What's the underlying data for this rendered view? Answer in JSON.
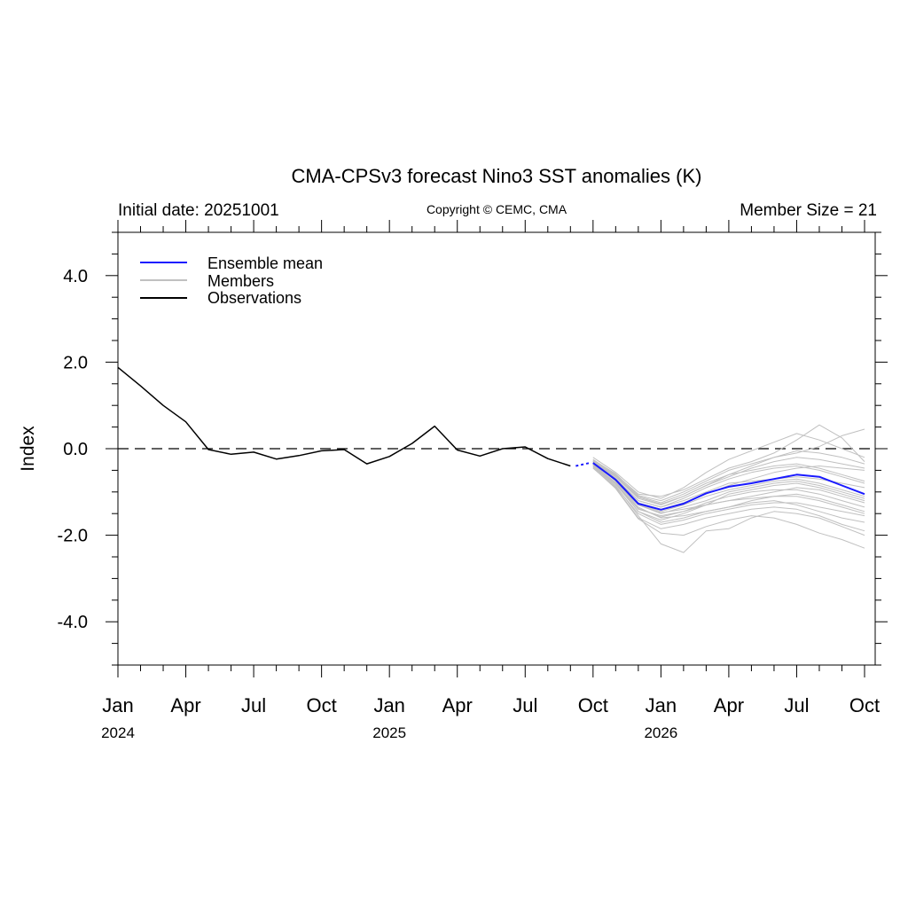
{
  "chart_data": {
    "type": "line",
    "title": "CMA-CPSv3 forecast Nino3 SST anomalies (K)",
    "subtitle_left": "Initial date: 20251001",
    "subtitle_center": "Copyright © CEMC, CMA",
    "subtitle_right": "Member Size = 21",
    "ylabel": "Index",
    "ylim": [
      -5,
      5
    ],
    "xlim": [
      "2024-01",
      "2026-10"
    ],
    "y_ticks": [
      "4.0",
      "2.0",
      "0.0",
      "-2.0",
      "-4.0"
    ],
    "x_tick_labels": [
      "Jan",
      "Apr",
      "Jul",
      "Oct",
      "Jan",
      "Apr",
      "Jul",
      "Oct",
      "Jan",
      "Apr",
      "Jul",
      "Oct"
    ],
    "year_labels": [
      "2024",
      "2025",
      "2026"
    ],
    "zero_line": "dashed",
    "legend_position": "top-left",
    "colors": {
      "ensemble_mean": "#1a1aff",
      "members": "#c0c0c0",
      "observations": "#000000"
    },
    "legend": [
      "Ensemble mean",
      "Members",
      "Observations"
    ],
    "series": [
      {
        "name": "Observations",
        "x": [
          "2024-01",
          "2024-02",
          "2024-03",
          "2024-04",
          "2024-05",
          "2024-06",
          "2024-07",
          "2024-08",
          "2024-09",
          "2024-10",
          "2024-11",
          "2024-12",
          "2025-01",
          "2025-02",
          "2025-03",
          "2025-04",
          "2025-05",
          "2025-06",
          "2025-07",
          "2025-08",
          "2025-09"
        ],
        "values": [
          1.88,
          1.45,
          1.0,
          0.62,
          -0.02,
          -0.13,
          -0.08,
          -0.24,
          -0.16,
          -0.05,
          -0.02,
          -0.35,
          -0.18,
          0.12,
          0.52,
          -0.03,
          -0.17,
          0.0,
          0.04,
          -0.23,
          -0.4
        ]
      },
      {
        "name": "Ensemble mean",
        "x": [
          "2025-10",
          "2025-11",
          "2025-12",
          "2026-01",
          "2026-02",
          "2026-03",
          "2026-04",
          "2026-05",
          "2026-06",
          "2026-07",
          "2026-08",
          "2026-09",
          "2026-10"
        ],
        "values": [
          -0.33,
          -0.72,
          -1.27,
          -1.41,
          -1.27,
          -1.03,
          -0.88,
          -0.8,
          -0.7,
          -0.6,
          -0.65,
          -0.85,
          -1.05
        ]
      }
    ],
    "members": {
      "x": [
        "2025-10",
        "2025-11",
        "2025-12",
        "2026-01",
        "2026-02",
        "2026-03",
        "2026-04",
        "2026-05",
        "2026-06",
        "2026-07",
        "2026-08",
        "2026-09",
        "2026-10"
      ],
      "values": [
        [
          -0.3,
          -0.65,
          -1.15,
          -1.3,
          -1.1,
          -0.85,
          -0.6,
          -0.4,
          -0.2,
          -0.1,
          0.05,
          0.3,
          0.45
        ],
        [
          -0.35,
          -0.8,
          -1.4,
          -1.55,
          -1.45,
          -1.3,
          -1.2,
          -1.1,
          -1.0,
          -0.9,
          -0.95,
          -1.1,
          -1.25
        ],
        [
          -0.25,
          -0.6,
          -1.05,
          -1.1,
          -0.95,
          -0.7,
          -0.45,
          -0.3,
          -0.1,
          0.2,
          0.55,
          0.25,
          -0.3
        ],
        [
          -0.4,
          -0.85,
          -1.55,
          -2.2,
          -2.4,
          -1.9,
          -1.85,
          -1.6,
          -1.45,
          -1.5,
          -1.6,
          -1.8,
          -2.0
        ],
        [
          -0.2,
          -0.55,
          -1.0,
          -1.15,
          -0.9,
          -0.55,
          -0.25,
          -0.05,
          0.15,
          0.35,
          0.2,
          0.0,
          -0.2
        ],
        [
          -0.35,
          -0.7,
          -1.2,
          -1.35,
          -1.2,
          -1.0,
          -0.8,
          -0.75,
          -0.7,
          -0.65,
          -0.7,
          -0.8,
          -0.9
        ],
        [
          -0.3,
          -0.75,
          -1.35,
          -1.6,
          -1.55,
          -1.45,
          -1.35,
          -1.25,
          -1.2,
          -1.3,
          -1.45,
          -1.6,
          -1.7
        ],
        [
          -0.45,
          -0.9,
          -1.6,
          -1.85,
          -1.75,
          -1.6,
          -1.5,
          -1.4,
          -1.35,
          -1.4,
          -1.55,
          -1.75,
          -1.9
        ],
        [
          -0.28,
          -0.62,
          -1.1,
          -1.25,
          -1.05,
          -0.8,
          -0.6,
          -0.5,
          -0.4,
          -0.35,
          -0.45,
          -0.6,
          -0.75
        ],
        [
          -0.38,
          -0.8,
          -1.45,
          -1.65,
          -1.5,
          -1.3,
          -1.05,
          -0.95,
          -0.85,
          -0.8,
          -0.9,
          -1.05,
          -1.2
        ],
        [
          -0.32,
          -0.7,
          -1.25,
          -1.4,
          -1.25,
          -1.05,
          -0.85,
          -0.7,
          -0.55,
          -0.45,
          -0.4,
          -0.45,
          -0.5
        ],
        [
          -0.42,
          -0.88,
          -1.5,
          -1.75,
          -1.65,
          -1.5,
          -1.4,
          -1.3,
          -1.25,
          -1.25,
          -1.35,
          -1.45,
          -1.55
        ],
        [
          -0.3,
          -0.68,
          -1.2,
          -1.35,
          -1.15,
          -0.9,
          -0.7,
          -0.55,
          -0.45,
          -0.4,
          -0.5,
          -0.65,
          -0.8
        ],
        [
          -0.36,
          -0.78,
          -1.3,
          -1.5,
          -1.35,
          -1.2,
          -1.0,
          -0.9,
          -0.8,
          -0.75,
          -0.85,
          -1.0,
          -1.15
        ],
        [
          -0.26,
          -0.58,
          -1.08,
          -1.2,
          -1.0,
          -0.75,
          -0.5,
          -0.35,
          -0.2,
          -0.05,
          -0.1,
          -0.2,
          -0.35
        ],
        [
          -0.4,
          -0.82,
          -1.45,
          -1.7,
          -1.6,
          -1.45,
          -1.35,
          -1.2,
          -1.1,
          -1.05,
          -1.15,
          -1.3,
          -1.45
        ],
        [
          -0.34,
          -0.74,
          -1.28,
          -1.45,
          -1.3,
          -1.1,
          -0.95,
          -0.85,
          -0.75,
          -0.7,
          -0.8,
          -0.95,
          -1.1
        ],
        [
          -0.44,
          -0.92,
          -1.62,
          -1.95,
          -2.0,
          -1.8,
          -1.65,
          -1.55,
          -1.6,
          -1.75,
          -1.95,
          -2.1,
          -2.3
        ],
        [
          -0.29,
          -0.64,
          -1.12,
          -1.28,
          -1.1,
          -0.85,
          -0.65,
          -0.45,
          -0.3,
          -0.2,
          -0.25,
          -0.35,
          -0.45
        ],
        [
          -0.37,
          -0.79,
          -1.38,
          -1.58,
          -1.45,
          -1.25,
          -1.1,
          -1.0,
          -0.95,
          -0.95,
          -1.05,
          -1.2,
          -1.35
        ],
        [
          -0.33,
          -0.72,
          -1.3,
          -1.48,
          -1.4,
          -1.3,
          -1.2,
          -1.15,
          -1.1,
          -1.1,
          -1.2,
          -1.35,
          -1.5
        ]
      ]
    }
  }
}
